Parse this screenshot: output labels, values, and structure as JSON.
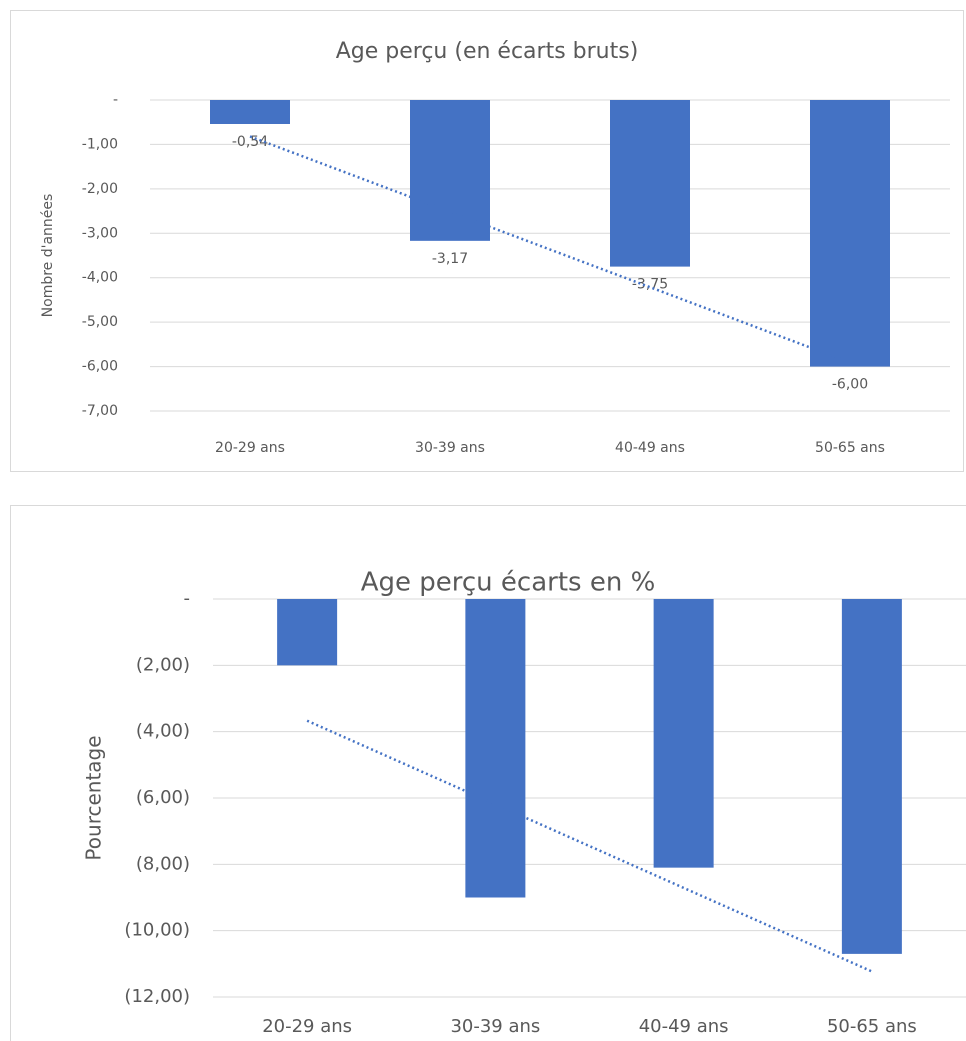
{
  "chart_data": [
    {
      "type": "bar",
      "title": "Age perçu (en écarts bruts)",
      "y_label": "Nombre d'années",
      "categories": [
        "20-29 ans",
        "30-39 ans",
        "40-49 ans",
        "50-65 ans"
      ],
      "values": [
        -0.54,
        -3.17,
        -3.75,
        -6.0
      ],
      "value_labels": [
        "-0,54",
        "-3,17",
        "-3,75",
        "-6,00"
      ],
      "color": "#4472c4",
      "trendline": "linear",
      "grid": true,
      "ylim": [
        -7,
        0
      ],
      "yticks": [
        {
          "value": 0,
          "label": "-"
        },
        {
          "value": -1,
          "label": "-1,00"
        },
        {
          "value": -2,
          "label": "-2,00"
        },
        {
          "value": -3,
          "label": "-3,00"
        },
        {
          "value": -4,
          "label": "-4,00"
        },
        {
          "value": -5,
          "label": "-5,00"
        },
        {
          "value": -6,
          "label": "-6,00"
        },
        {
          "value": -7,
          "label": "-7,00"
        }
      ]
    },
    {
      "type": "bar",
      "title": "Age perçu écarts en %",
      "y_label": "Pourcentage",
      "categories": [
        "20-29 ans",
        "30-39 ans",
        "40-49 ans",
        "50-65 ans"
      ],
      "values": [
        -2.0,
        -9.0,
        -8.1,
        -10.7
      ],
      "color": "#4472c4",
      "trendline": "linear",
      "grid": true,
      "ylim": [
        -12,
        0
      ],
      "yticks": [
        {
          "value": 0,
          "label": "-"
        },
        {
          "value": -2,
          "label": "(2,00)"
        },
        {
          "value": -4,
          "label": "(4,00)"
        },
        {
          "value": -6,
          "label": "(6,00)"
        },
        {
          "value": -8,
          "label": "(8,00)"
        },
        {
          "value": -10,
          "label": "(10,00)"
        },
        {
          "value": -12,
          "label": "(12,00)"
        }
      ]
    }
  ]
}
